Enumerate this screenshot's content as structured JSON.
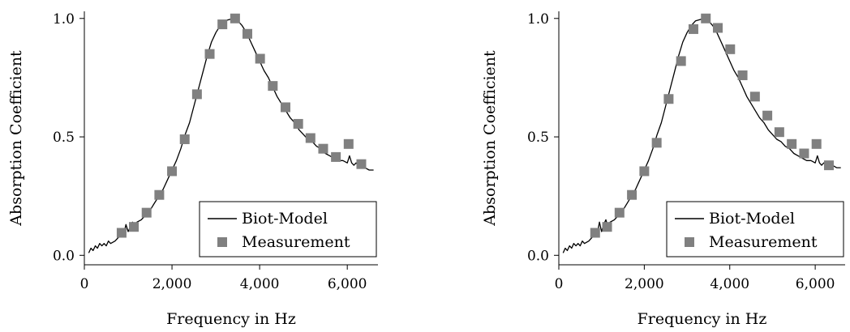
{
  "colors": {
    "model_line": "#000000",
    "marker": "#808080",
    "axis": "#000000",
    "background": "#ffffff"
  },
  "chart_data": [
    {
      "type": "line",
      "xlabel": "Frequency in Hz",
      "ylabel": "Absorption Coefficient",
      "xlim": [
        0,
        6700
      ],
      "ylim": [
        -0.04,
        1.03
      ],
      "xticks": [
        0,
        2000,
        4000,
        6000
      ],
      "xtick_labels": [
        "0",
        "2,000",
        "4,000",
        "6,000"
      ],
      "yticks": [
        0.0,
        0.5,
        1.0
      ],
      "ytick_labels": [
        "0.0",
        "0.5",
        "1.0"
      ],
      "grid": false,
      "legend_position": "bottom-right",
      "series": [
        {
          "name": "Biot-Model",
          "kind": "line",
          "x": [
            100,
            150,
            200,
            250,
            300,
            350,
            400,
            450,
            500,
            550,
            600,
            700,
            800,
            850,
            900,
            950,
            1000,
            1050,
            1100,
            1150,
            1200,
            1300,
            1400,
            1500,
            1600,
            1700,
            1800,
            1900,
            2000,
            2100,
            2200,
            2300,
            2400,
            2500,
            2600,
            2700,
            2800,
            2900,
            3000,
            3100,
            3200,
            3300,
            3400,
            3500,
            3600,
            3700,
            3800,
            3900,
            4000,
            4100,
            4200,
            4300,
            4400,
            4500,
            4600,
            4700,
            4800,
            4900,
            5000,
            5100,
            5200,
            5300,
            5400,
            5500,
            5600,
            5700,
            5800,
            5900,
            6000,
            6050,
            6100,
            6150,
            6200,
            6300,
            6400,
            6500,
            6600
          ],
          "y": [
            0.01,
            0.03,
            0.02,
            0.04,
            0.03,
            0.05,
            0.04,
            0.05,
            0.04,
            0.06,
            0.05,
            0.06,
            0.08,
            0.1,
            0.09,
            0.13,
            0.1,
            0.12,
            0.14,
            0.12,
            0.14,
            0.15,
            0.17,
            0.19,
            0.22,
            0.25,
            0.28,
            0.32,
            0.36,
            0.4,
            0.45,
            0.51,
            0.56,
            0.63,
            0.7,
            0.77,
            0.84,
            0.9,
            0.94,
            0.97,
            0.99,
            0.995,
            1.0,
            0.99,
            0.97,
            0.94,
            0.9,
            0.86,
            0.82,
            0.78,
            0.75,
            0.71,
            0.67,
            0.64,
            0.61,
            0.58,
            0.56,
            0.53,
            0.51,
            0.49,
            0.48,
            0.46,
            0.45,
            0.43,
            0.42,
            0.41,
            0.4,
            0.4,
            0.39,
            0.42,
            0.39,
            0.38,
            0.39,
            0.37,
            0.37,
            0.36,
            0.36
          ]
        },
        {
          "name": "Measurement",
          "kind": "marker",
          "x": [
            850,
            1130,
            1420,
            1710,
            2000,
            2290,
            2570,
            2860,
            3150,
            3440,
            3720,
            4010,
            4300,
            4590,
            4880,
            5160,
            5450,
            5740,
            6030,
            6320
          ],
          "y": [
            0.095,
            0.12,
            0.18,
            0.255,
            0.355,
            0.49,
            0.68,
            0.85,
            0.975,
            1.0,
            0.935,
            0.83,
            0.715,
            0.625,
            0.555,
            0.495,
            0.45,
            0.415,
            0.47,
            0.385
          ]
        }
      ]
    },
    {
      "type": "line",
      "xlabel": "Frequency in Hz",
      "ylabel": "Absorption Coefficient",
      "xlim": [
        0,
        6700
      ],
      "ylim": [
        -0.04,
        1.03
      ],
      "xticks": [
        0,
        2000,
        4000,
        6000
      ],
      "xtick_labels": [
        "0",
        "2,000",
        "4,000",
        "6,000"
      ],
      "yticks": [
        0.0,
        0.5,
        1.0
      ],
      "ytick_labels": [
        "0.0",
        "0.5",
        "1.0"
      ],
      "grid": false,
      "legend_position": "bottom-right",
      "series": [
        {
          "name": "Biot-Model",
          "kind": "line",
          "x": [
            100,
            150,
            200,
            250,
            300,
            350,
            400,
            450,
            500,
            550,
            600,
            700,
            800,
            850,
            900,
            950,
            1000,
            1050,
            1100,
            1150,
            1200,
            1300,
            1400,
            1500,
            1600,
            1700,
            1800,
            1900,
            2000,
            2100,
            2200,
            2300,
            2400,
            2500,
            2600,
            2700,
            2800,
            2900,
            3000,
            3100,
            3200,
            3300,
            3400,
            3500,
            3600,
            3700,
            3800,
            3900,
            4000,
            4100,
            4200,
            4300,
            4400,
            4500,
            4600,
            4700,
            4800,
            4900,
            5000,
            5100,
            5200,
            5300,
            5400,
            5500,
            5600,
            5700,
            5800,
            5900,
            6000,
            6050,
            6100,
            6150,
            6200,
            6300,
            6400,
            6500,
            6600
          ],
          "y": [
            0.01,
            0.03,
            0.02,
            0.04,
            0.03,
            0.05,
            0.04,
            0.05,
            0.04,
            0.06,
            0.05,
            0.06,
            0.08,
            0.1,
            0.09,
            0.14,
            0.1,
            0.13,
            0.15,
            0.12,
            0.14,
            0.15,
            0.17,
            0.19,
            0.22,
            0.25,
            0.28,
            0.32,
            0.36,
            0.4,
            0.45,
            0.51,
            0.56,
            0.63,
            0.7,
            0.77,
            0.84,
            0.9,
            0.94,
            0.97,
            0.99,
            0.995,
            1.0,
            0.99,
            0.97,
            0.94,
            0.9,
            0.86,
            0.82,
            0.78,
            0.75,
            0.71,
            0.67,
            0.64,
            0.61,
            0.58,
            0.56,
            0.53,
            0.51,
            0.49,
            0.48,
            0.46,
            0.45,
            0.43,
            0.42,
            0.41,
            0.4,
            0.4,
            0.39,
            0.42,
            0.39,
            0.38,
            0.39,
            0.38,
            0.38,
            0.37,
            0.37
          ]
        },
        {
          "name": "Measurement",
          "kind": "marker",
          "x": [
            850,
            1130,
            1420,
            1710,
            2000,
            2290,
            2570,
            2860,
            3150,
            3440,
            3720,
            4010,
            4300,
            4590,
            4880,
            5160,
            5450,
            5740,
            6030,
            6320
          ],
          "y": [
            0.095,
            0.12,
            0.18,
            0.255,
            0.355,
            0.475,
            0.66,
            0.82,
            0.955,
            1.0,
            0.96,
            0.87,
            0.76,
            0.67,
            0.59,
            0.52,
            0.47,
            0.43,
            0.47,
            0.38
          ]
        }
      ]
    }
  ]
}
